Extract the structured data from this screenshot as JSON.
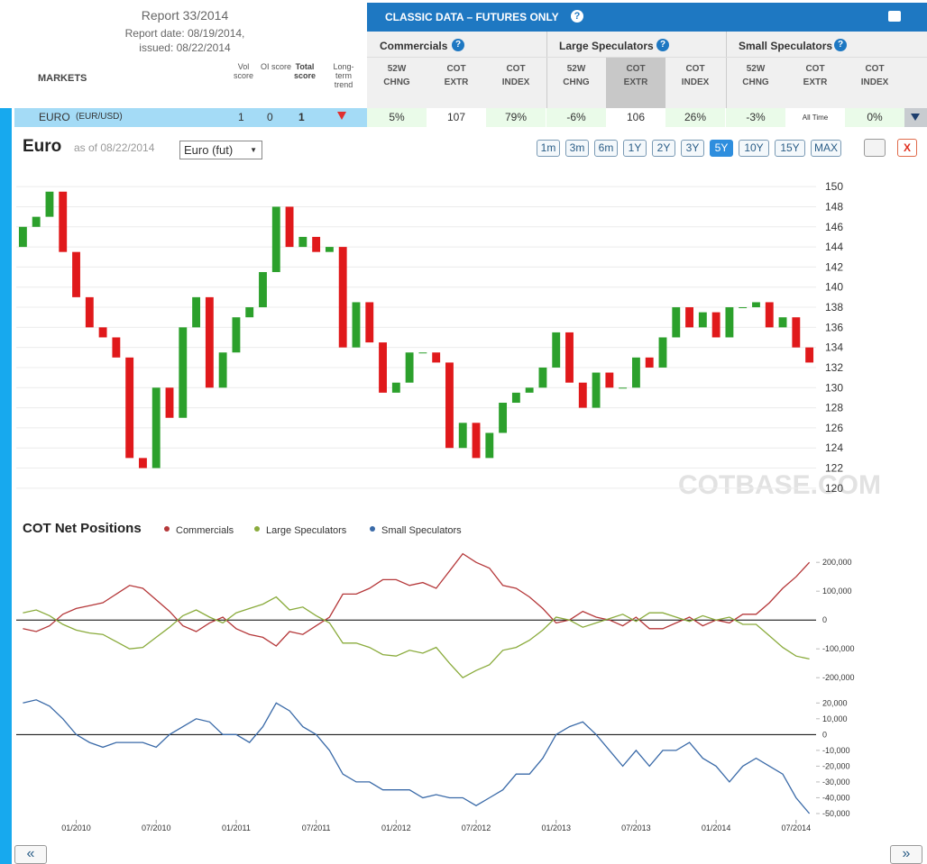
{
  "header": {
    "report": "Report 33/2014",
    "report_date": "Report date: 08/19/2014,",
    "issued": "issued: 08/22/2014"
  },
  "columns": {
    "markets": "MARKETS",
    "vol": "Vol score",
    "oi": "OI score",
    "total": "Total score",
    "trend": "Long-term trend"
  },
  "banner": "CLASSIC DATA – FUTURES ONLY",
  "groups": [
    "Commercials",
    "Large Speculators",
    "Small Speculators"
  ],
  "subcolumns": [
    "52W CHNG",
    "COT EXTR",
    "COT INDEX"
  ],
  "row": {
    "market": "EURO",
    "symbol": "(EUR/USD)",
    "vol": "1",
    "oi": "0",
    "total": "1",
    "cells": [
      "5%",
      "107",
      "79%",
      "-6%",
      "106",
      "26%",
      "-3%",
      "All Time",
      "0%"
    ]
  },
  "panel": {
    "title": "Euro",
    "as_of": "as of 08/22/2014",
    "select": "Euro (fut)",
    "ranges": [
      "1m",
      "3m",
      "6m",
      "1Y",
      "2Y",
      "3Y",
      "5Y",
      "10Y",
      "15Y",
      "MAX"
    ],
    "active_range": "5Y",
    "close": "X",
    "watermark": "COTBASE.COM"
  },
  "nav": [
    "«",
    "»"
  ],
  "chart_data": [
    {
      "type": "candlestick",
      "up_color": "#2ca02c",
      "down_color": "#e0191b",
      "ylim": [
        119,
        151
      ],
      "yticks": [
        120,
        122,
        124,
        126,
        128,
        130,
        132,
        134,
        136,
        138,
        140,
        142,
        144,
        146,
        148,
        150
      ],
      "grid": true,
      "open": [
        144,
        146,
        147,
        149.5,
        143.5,
        139,
        136,
        135,
        133,
        123,
        122,
        130,
        127,
        136,
        139,
        130,
        133.5,
        137,
        138,
        141.5,
        148,
        144,
        145,
        143.5,
        144,
        134,
        138.5,
        134.5,
        129.5,
        130.5,
        133.5,
        133.5,
        132.5,
        124,
        126.5,
        123,
        125.5,
        128.5,
        129.5,
        130,
        132,
        135.5,
        130.5,
        128,
        131.5,
        130,
        130,
        133,
        132,
        135,
        138,
        136,
        137.5,
        135,
        138,
        138,
        138.5,
        136,
        137,
        134
      ],
      "close": [
        146,
        147,
        149.5,
        143.5,
        139,
        136,
        135,
        133,
        123,
        122,
        130,
        127,
        136,
        139,
        130,
        133.5,
        137,
        138,
        141.5,
        148,
        144,
        145,
        143.5,
        144,
        134,
        138.5,
        134.5,
        129.5,
        130.5,
        133.5,
        133.5,
        132.5,
        124,
        126.5,
        123,
        125.5,
        128.5,
        129.5,
        130,
        132,
        135.5,
        130.5,
        128,
        131.5,
        130,
        130,
        133,
        132,
        135,
        138,
        136,
        137.5,
        135,
        138,
        138,
        138.5,
        136,
        137,
        134,
        132.5
      ]
    },
    {
      "type": "line",
      "title": "COT Net Positions",
      "x": [
        "09/2009",
        "10/2009",
        "11/2009",
        "12/2009",
        "01/2010",
        "02/2010",
        "03/2010",
        "04/2010",
        "05/2010",
        "06/2010",
        "07/2010",
        "08/2010",
        "09/2010",
        "10/2010",
        "11/2010",
        "12/2010",
        "01/2011",
        "02/2011",
        "03/2011",
        "04/2011",
        "05/2011",
        "06/2011",
        "07/2011",
        "08/2011",
        "09/2011",
        "10/2011",
        "11/2011",
        "12/2011",
        "01/2012",
        "02/2012",
        "03/2012",
        "04/2012",
        "05/2012",
        "06/2012",
        "07/2012",
        "08/2012",
        "09/2012",
        "10/2012",
        "11/2012",
        "12/2012",
        "01/2013",
        "02/2013",
        "03/2013",
        "04/2013",
        "05/2013",
        "06/2013",
        "07/2013",
        "08/2013",
        "09/2013",
        "10/2013",
        "11/2013",
        "12/2013",
        "01/2014",
        "02/2014",
        "03/2014",
        "04/2014",
        "05/2014",
        "06/2014",
        "07/2014",
        "08/2014"
      ],
      "xticks": [
        "01/2010",
        "07/2010",
        "01/2011",
        "07/2011",
        "01/2012",
        "07/2012",
        "01/2013",
        "07/2013",
        "01/2014",
        "07/2014"
      ],
      "ylim": [
        -240000,
        260000
      ],
      "yticks": [
        {
          "value": 200000,
          "label": "200,000"
        },
        {
          "value": 100000,
          "label": "100,000"
        },
        0,
        {
          "value": -100000,
          "label": "-100,000"
        },
        {
          "value": -200000,
          "label": "-200,000"
        }
      ],
      "y2lim": [
        -54000,
        27000
      ],
      "y2ticks": [
        {
          "value": 20000,
          "label": "20,000"
        },
        {
          "value": 10000,
          "label": "10,000"
        },
        0,
        {
          "value": -10000,
          "label": "-10,000"
        },
        {
          "value": -20000,
          "label": "-20,000"
        },
        {
          "value": -30000,
          "label": "-30,000"
        },
        {
          "value": -40000,
          "label": "-40,000"
        },
        {
          "value": -50000,
          "label": "-50,000"
        }
      ],
      "series": [
        {
          "name": "Commercials",
          "color": "#b5383a",
          "values": [
            -30000,
            -40000,
            -20000,
            20000,
            40000,
            50000,
            60000,
            90000,
            120000,
            110000,
            70000,
            30000,
            -20000,
            -40000,
            -10000,
            10000,
            -30000,
            -50000,
            -60000,
            -90000,
            -40000,
            -50000,
            -20000,
            10000,
            90000,
            90000,
            110000,
            140000,
            140000,
            120000,
            130000,
            110000,
            170000,
            230000,
            200000,
            180000,
            120000,
            110000,
            80000,
            40000,
            -10000,
            0,
            30000,
            10000,
            0,
            -20000,
            10000,
            -30000,
            -30000,
            -10000,
            10000,
            -20000,
            0,
            -10000,
            20000,
            20000,
            60000,
            110000,
            150000,
            200000
          ]
        },
        {
          "name": "Large Speculators",
          "color": "#8aab3c",
          "values": [
            25000,
            35000,
            15000,
            -15000,
            -35000,
            -45000,
            -50000,
            -75000,
            -100000,
            -95000,
            -60000,
            -25000,
            15000,
            35000,
            10000,
            -10000,
            25000,
            40000,
            55000,
            80000,
            35000,
            45000,
            15000,
            -10000,
            -80000,
            -80000,
            -95000,
            -120000,
            -125000,
            -105000,
            -115000,
            -95000,
            -150000,
            -200000,
            -175000,
            -155000,
            -105000,
            -95000,
            -70000,
            -35000,
            10000,
            0,
            -25000,
            -10000,
            5000,
            20000,
            -5000,
            25000,
            25000,
            10000,
            -5000,
            15000,
            0,
            10000,
            -15000,
            -15000,
            -55000,
            -95000,
            -125000,
            -135000
          ]
        },
        {
          "name": "Small Speculators",
          "color": "#3a6aa8",
          "axis": "y2",
          "values": [
            20000,
            22000,
            18000,
            10000,
            0,
            -5000,
            -8000,
            -5000,
            -5000,
            -5000,
            -8000,
            0,
            5000,
            10000,
            8000,
            0,
            0,
            -5000,
            5000,
            20000,
            15000,
            5000,
            0,
            -10000,
            -25000,
            -30000,
            -30000,
            -35000,
            -35000,
            -35000,
            -40000,
            -38000,
            -40000,
            -40000,
            -45000,
            -40000,
            -35000,
            -25000,
            -25000,
            -15000,
            0,
            5000,
            8000,
            0,
            -10000,
            -20000,
            -10000,
            -20000,
            -10000,
            -10000,
            -5000,
            -15000,
            -20000,
            -30000,
            -20000,
            -15000,
            -20000,
            -25000,
            -40000,
            -50000
          ]
        }
      ]
    }
  ]
}
